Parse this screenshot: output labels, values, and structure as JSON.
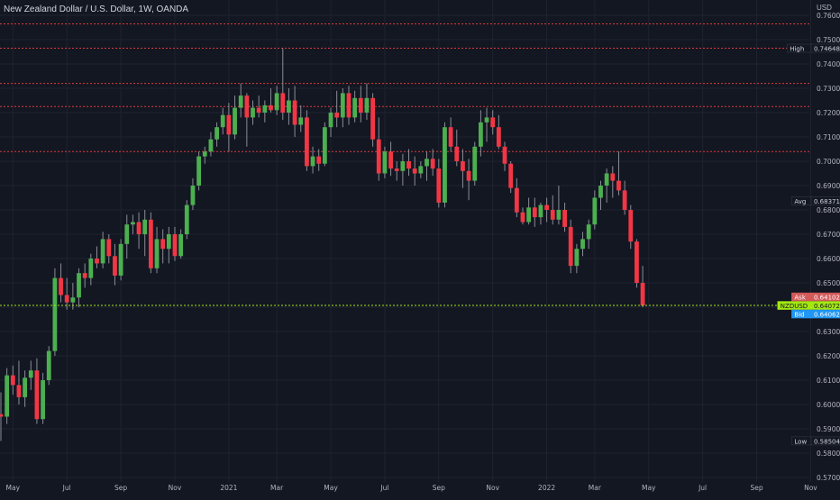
{
  "header": {
    "title": "New Zealand Dollar / U.S. Dollar, 1W, OANDA",
    "currency": "USD"
  },
  "colors": {
    "background": "#131722",
    "grid": "#1f2330",
    "up": "#26a69a",
    "upBody": "#4caf50",
    "down": "#f23645",
    "wick": "#8a8d96",
    "resistance": "#e03a3a",
    "current": "#a4e812",
    "ask": "#d45a5a",
    "bid": "#2196f3",
    "label": "#d1d4dc"
  },
  "chart_data": {
    "type": "candlestick",
    "title": "New Zealand Dollar / U.S. Dollar, 1W, OANDA",
    "ylabel": "USD",
    "ylim": [
      0.57,
      0.76
    ],
    "y_ticks": [
      "0.57000",
      "0.58000",
      "0.59000",
      "0.60000",
      "0.61000",
      "0.62000",
      "0.63000",
      "0.64000",
      "0.65000",
      "0.66000",
      "0.67000",
      "0.68000",
      "0.69000",
      "0.70000",
      "0.71000",
      "0.72000",
      "0.73000",
      "0.74000",
      "0.75000",
      "0.76000"
    ],
    "x_ticks": [
      {
        "label": "May",
        "week": 2
      },
      {
        "label": "Jul",
        "week": 11
      },
      {
        "label": "Sep",
        "week": 20
      },
      {
        "label": "Nov",
        "week": 29
      },
      {
        "label": "2021",
        "week": 38
      },
      {
        "label": "Mar",
        "week": 46
      },
      {
        "label": "May",
        "week": 55
      },
      {
        "label": "Jul",
        "week": 64
      },
      {
        "label": "Sep",
        "week": 73
      },
      {
        "label": "Nov",
        "week": 82
      },
      {
        "label": "2022",
        "week": 91
      },
      {
        "label": "Mar",
        "week": 99
      },
      {
        "label": "May",
        "week": 108
      },
      {
        "label": "Jul",
        "week": 117
      },
      {
        "label": "Sep",
        "week": 126
      },
      {
        "label": "Nov",
        "week": 135
      }
    ],
    "horizontal_lines": [
      0.7565,
      0.7465,
      0.732,
      0.7225,
      0.704
    ],
    "current_price": 0.64072,
    "markers": [
      {
        "label": "High",
        "value": "0.74648",
        "price": 0.74648,
        "style": "dark"
      },
      {
        "label": "Avg",
        "value": "0.68371",
        "price": 0.68371,
        "style": "dark"
      },
      {
        "label": "Ask",
        "value": "0.64102",
        "price": 0.64102,
        "style": "ask"
      },
      {
        "label": "NZDUSD",
        "value": "0.64072",
        "price": 0.64072,
        "style": "current"
      },
      {
        "label": "Bid",
        "value": "0.64062",
        "price": 0.64062,
        "style": "bid"
      },
      {
        "label": "Low",
        "value": "0.58504",
        "price": 0.58504,
        "style": "dark"
      }
    ],
    "ohlc": [
      [
        0.596,
        0.605,
        0.585,
        0.595
      ],
      [
        0.595,
        0.615,
        0.592,
        0.612
      ],
      [
        0.612,
        0.616,
        0.604,
        0.608
      ],
      [
        0.608,
        0.618,
        0.6,
        0.603
      ],
      [
        0.603,
        0.614,
        0.599,
        0.611
      ],
      [
        0.611,
        0.618,
        0.606,
        0.614
      ],
      [
        0.614,
        0.619,
        0.592,
        0.594
      ],
      [
        0.594,
        0.613,
        0.592,
        0.61
      ],
      [
        0.61,
        0.624,
        0.608,
        0.622
      ],
      [
        0.622,
        0.656,
        0.62,
        0.652
      ],
      [
        0.652,
        0.658,
        0.642,
        0.645
      ],
      [
        0.645,
        0.652,
        0.639,
        0.642
      ],
      [
        0.642,
        0.65,
        0.639,
        0.644
      ],
      [
        0.644,
        0.656,
        0.64,
        0.654
      ],
      [
        0.654,
        0.658,
        0.648,
        0.652
      ],
      [
        0.652,
        0.662,
        0.649,
        0.66
      ],
      [
        0.66,
        0.665,
        0.656,
        0.658
      ],
      [
        0.658,
        0.671,
        0.656,
        0.668
      ],
      [
        0.668,
        0.67,
        0.658,
        0.661
      ],
      [
        0.661,
        0.666,
        0.649,
        0.653
      ],
      [
        0.653,
        0.668,
        0.651,
        0.666
      ],
      [
        0.666,
        0.678,
        0.66,
        0.674
      ],
      [
        0.674,
        0.678,
        0.67,
        0.675
      ],
      [
        0.675,
        0.679,
        0.664,
        0.67
      ],
      [
        0.67,
        0.68,
        0.661,
        0.676
      ],
      [
        0.676,
        0.679,
        0.654,
        0.656
      ],
      [
        0.656,
        0.673,
        0.654,
        0.668
      ],
      [
        0.668,
        0.672,
        0.658,
        0.664
      ],
      [
        0.664,
        0.673,
        0.658,
        0.67
      ],
      [
        0.67,
        0.673,
        0.659,
        0.661
      ],
      [
        0.661,
        0.672,
        0.66,
        0.67
      ],
      [
        0.67,
        0.684,
        0.668,
        0.682
      ],
      [
        0.682,
        0.693,
        0.68,
        0.69
      ],
      [
        0.69,
        0.704,
        0.688,
        0.702
      ],
      [
        0.702,
        0.706,
        0.699,
        0.704
      ],
      [
        0.704,
        0.712,
        0.702,
        0.709
      ],
      [
        0.709,
        0.716,
        0.706,
        0.714
      ],
      [
        0.714,
        0.722,
        0.711,
        0.719
      ],
      [
        0.719,
        0.724,
        0.704,
        0.711
      ],
      [
        0.711,
        0.727,
        0.709,
        0.722
      ],
      [
        0.722,
        0.732,
        0.718,
        0.727
      ],
      [
        0.727,
        0.728,
        0.706,
        0.718
      ],
      [
        0.718,
        0.725,
        0.715,
        0.722
      ],
      [
        0.722,
        0.727,
        0.718,
        0.72
      ],
      [
        0.72,
        0.725,
        0.716,
        0.723
      ],
      [
        0.723,
        0.73,
        0.72,
        0.721
      ],
      [
        0.721,
        0.731,
        0.719,
        0.728
      ],
      [
        0.728,
        0.7465,
        0.717,
        0.72
      ],
      [
        0.72,
        0.73,
        0.715,
        0.725
      ],
      [
        0.725,
        0.731,
        0.71,
        0.715
      ],
      [
        0.715,
        0.723,
        0.712,
        0.718
      ],
      [
        0.718,
        0.721,
        0.696,
        0.698
      ],
      [
        0.698,
        0.706,
        0.695,
        0.702
      ],
      [
        0.702,
        0.705,
        0.696,
        0.699
      ],
      [
        0.699,
        0.716,
        0.698,
        0.714
      ],
      [
        0.714,
        0.722,
        0.71,
        0.72
      ],
      [
        0.72,
        0.729,
        0.714,
        0.718
      ],
      [
        0.718,
        0.73,
        0.714,
        0.728
      ],
      [
        0.728,
        0.731,
        0.715,
        0.718
      ],
      [
        0.718,
        0.729,
        0.716,
        0.726
      ],
      [
        0.726,
        0.731,
        0.716,
        0.72
      ],
      [
        0.72,
        0.732,
        0.717,
        0.726
      ],
      [
        0.726,
        0.728,
        0.706,
        0.709
      ],
      [
        0.709,
        0.718,
        0.692,
        0.695
      ],
      [
        0.695,
        0.706,
        0.693,
        0.704
      ],
      [
        0.704,
        0.708,
        0.694,
        0.697
      ],
      [
        0.697,
        0.7,
        0.692,
        0.696
      ],
      [
        0.696,
        0.703,
        0.69,
        0.7
      ],
      [
        0.7,
        0.705,
        0.694,
        0.697
      ],
      [
        0.697,
        0.702,
        0.69,
        0.695
      ],
      [
        0.695,
        0.7,
        0.693,
        0.698
      ],
      [
        0.698,
        0.704,
        0.692,
        0.701
      ],
      [
        0.701,
        0.705,
        0.694,
        0.697
      ],
      [
        0.697,
        0.701,
        0.681,
        0.683
      ],
      [
        0.683,
        0.716,
        0.681,
        0.714
      ],
      [
        0.714,
        0.718,
        0.704,
        0.706
      ],
      [
        0.706,
        0.713,
        0.698,
        0.7
      ],
      [
        0.7,
        0.705,
        0.689,
        0.696
      ],
      [
        0.696,
        0.701,
        0.684,
        0.692
      ],
      [
        0.692,
        0.708,
        0.69,
        0.706
      ],
      [
        0.706,
        0.721,
        0.702,
        0.716
      ],
      [
        0.716,
        0.722,
        0.708,
        0.718
      ],
      [
        0.718,
        0.721,
        0.711,
        0.714
      ],
      [
        0.714,
        0.719,
        0.705,
        0.706
      ],
      [
        0.706,
        0.708,
        0.696,
        0.699
      ],
      [
        0.699,
        0.7,
        0.687,
        0.689
      ],
      [
        0.689,
        0.693,
        0.677,
        0.679
      ],
      [
        0.679,
        0.681,
        0.674,
        0.675
      ],
      [
        0.675,
        0.685,
        0.674,
        0.681
      ],
      [
        0.681,
        0.685,
        0.673,
        0.677
      ],
      [
        0.677,
        0.683,
        0.674,
        0.682
      ],
      [
        0.682,
        0.685,
        0.675,
        0.68
      ],
      [
        0.68,
        0.686,
        0.674,
        0.676
      ],
      [
        0.676,
        0.69,
        0.674,
        0.68
      ],
      [
        0.68,
        0.683,
        0.671,
        0.673
      ],
      [
        0.673,
        0.676,
        0.654,
        0.657
      ],
      [
        0.657,
        0.666,
        0.654,
        0.664
      ],
      [
        0.664,
        0.671,
        0.661,
        0.668
      ],
      [
        0.668,
        0.676,
        0.664,
        0.674
      ],
      [
        0.674,
        0.688,
        0.672,
        0.685
      ],
      [
        0.685,
        0.692,
        0.68,
        0.69
      ],
      [
        0.69,
        0.697,
        0.683,
        0.695
      ],
      [
        0.695,
        0.698,
        0.685,
        0.692
      ],
      [
        0.692,
        0.704,
        0.686,
        0.688
      ],
      [
        0.688,
        0.692,
        0.678,
        0.68
      ],
      [
        0.68,
        0.682,
        0.664,
        0.667
      ],
      [
        0.667,
        0.668,
        0.648,
        0.65
      ],
      [
        0.65,
        0.657,
        0.64,
        0.6407
      ]
    ]
  }
}
